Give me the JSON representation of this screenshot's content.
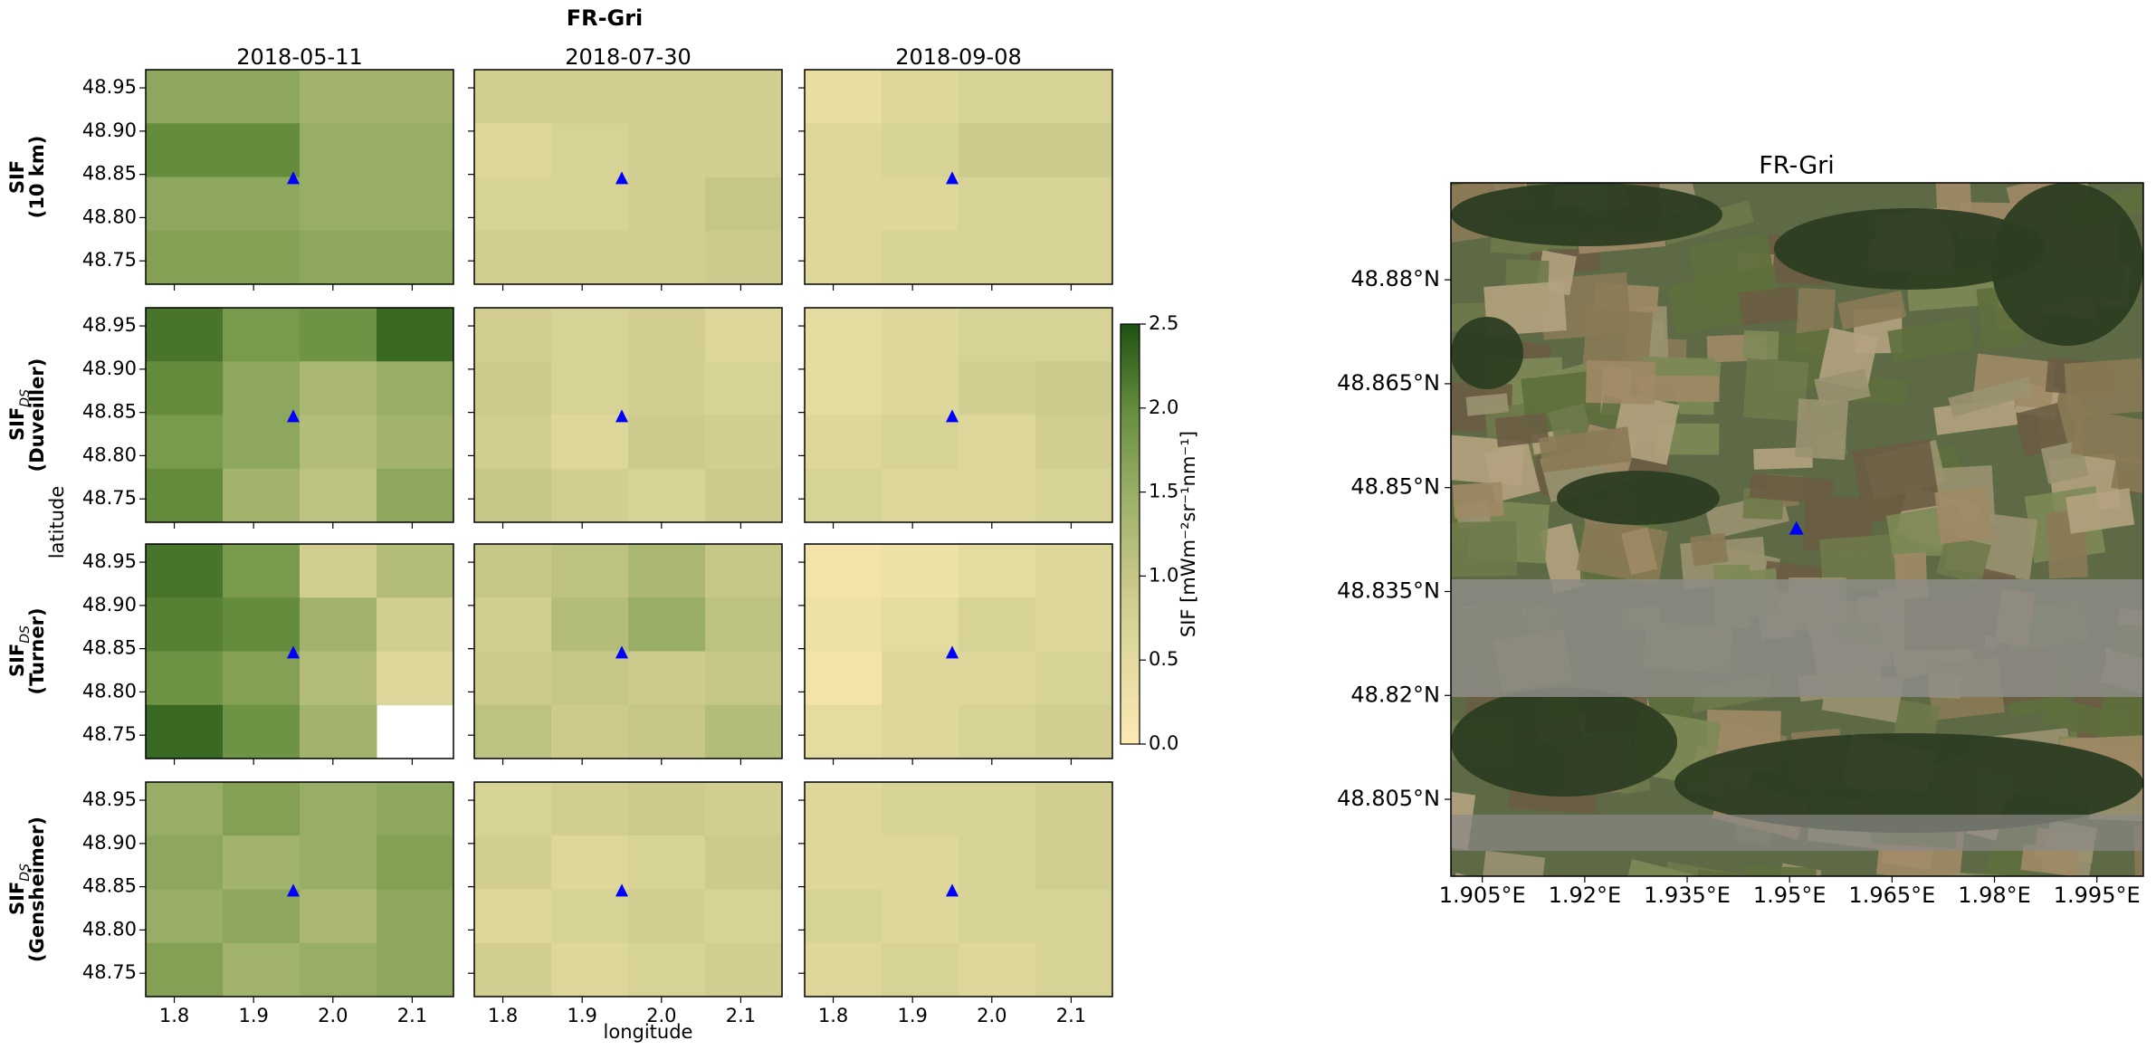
{
  "chart_data": [
    {
      "type": "heatmap_grid",
      "title": "FR-Gri",
      "columns": [
        "2018-05-11",
        "2018-07-30",
        "2018-09-08"
      ],
      "rows": [
        {
          "name": "SIF",
          "detail": "(10 km)"
        },
        {
          "name": "SIF",
          "subscript": "DS",
          "detail": "(Duveiller)"
        },
        {
          "name": "SIF",
          "subscript": "DS",
          "detail": "(Turner)"
        },
        {
          "name": "SIF",
          "subscript": "DS",
          "detail": "(Gensheimer)"
        }
      ],
      "xlabel": "longitude",
      "ylabel": "latitude",
      "xlim": [
        1.764,
        2.152
      ],
      "ylim": [
        48.723,
        48.971
      ],
      "xticks": [
        1.8,
        1.9,
        {
          "value": 2,
          "label": "2.0"
        },
        2.1
      ],
      "yticks": [
        48.75,
        {
          "value": 48.8,
          "label": "48.80"
        },
        48.85,
        {
          "value": 48.9,
          "label": "48.90"
        },
        48.95
      ],
      "marker": {
        "x": 1.95,
        "y": 48.845,
        "color": "#0000ff"
      },
      "colorbar_label": "SIF [mWm⁻²sr⁻¹nm⁻¹]",
      "clim": [
        0,
        2.5
      ],
      "cticks": [
        {
          "value": 0,
          "label": "0.0"
        },
        0.5,
        {
          "value": 1,
          "label": "1.0"
        },
        1.5,
        {
          "value": 2,
          "label": "2.0"
        },
        2.5
      ],
      "colormap": [
        "#fde9b3",
        "#e3dba0",
        "#c6c688",
        "#98ae66",
        "#648c3c",
        "#1e5112"
      ],
      "panels": [
        [
          [
            [
              1.6,
              1.6,
              1.4,
              1.4
            ],
            [
              2.0,
              2.0,
              1.5,
              1.5
            ],
            [
              1.6,
              1.6,
              1.5,
              1.5
            ],
            [
              1.7,
              1.7,
              1.6,
              1.6
            ]
          ],
          [
            [
              0.8,
              0.8,
              0.8,
              0.8
            ],
            [
              0.6,
              0.7,
              0.8,
              0.8
            ],
            [
              0.7,
              0.7,
              0.8,
              1.0
            ],
            [
              0.8,
              0.8,
              0.8,
              0.9
            ]
          ],
          [
            [
              0.4,
              0.6,
              0.7,
              0.7
            ],
            [
              0.6,
              0.7,
              0.9,
              0.9
            ],
            [
              0.6,
              0.6,
              0.7,
              0.7
            ],
            [
              0.6,
              0.7,
              0.7,
              0.7
            ]
          ]
        ],
        [
          [
            [
              2.2,
              1.8,
              1.9,
              2.3
            ],
            [
              2.0,
              1.6,
              1.3,
              1.5
            ],
            [
              1.8,
              1.6,
              1.2,
              1.4
            ],
            [
              2.0,
              1.4,
              1.1,
              1.6
            ]
          ],
          [
            [
              0.8,
              0.7,
              0.8,
              0.6
            ],
            [
              0.9,
              0.7,
              0.8,
              0.7
            ],
            [
              0.8,
              0.6,
              0.9,
              0.8
            ],
            [
              1.0,
              0.8,
              0.7,
              0.9
            ]
          ],
          [
            [
              0.5,
              0.6,
              0.7,
              0.7
            ],
            [
              0.5,
              0.6,
              0.8,
              0.9
            ],
            [
              0.6,
              0.7,
              0.6,
              0.8
            ],
            [
              0.7,
              0.6,
              0.6,
              0.7
            ]
          ]
        ],
        [
          [
            [
              2.2,
              1.8,
              0.8,
              1.2
            ],
            [
              2.1,
              2.0,
              1.4,
              0.8
            ],
            [
              1.9,
              1.7,
              1.2,
              0.6
            ],
            [
              2.3,
              1.9,
              1.4,
              null
            ]
          ],
          [
            [
              1.0,
              1.1,
              1.3,
              1.0
            ],
            [
              0.8,
              1.2,
              1.5,
              1.1
            ],
            [
              0.9,
              1.0,
              0.9,
              1.0
            ],
            [
              1.1,
              0.9,
              1.0,
              1.2
            ]
          ],
          [
            [
              0.2,
              0.3,
              0.5,
              0.6
            ],
            [
              0.3,
              0.5,
              0.7,
              0.6
            ],
            [
              0.2,
              0.6,
              0.6,
              0.7
            ],
            [
              0.5,
              0.6,
              0.7,
              0.8
            ]
          ]
        ],
        [
          [
            [
              1.5,
              1.7,
              1.5,
              1.6
            ],
            [
              1.6,
              1.4,
              1.5,
              1.7
            ],
            [
              1.5,
              1.6,
              1.3,
              1.6
            ],
            [
              1.7,
              1.4,
              1.5,
              1.6
            ]
          ],
          [
            [
              0.7,
              0.8,
              0.9,
              0.8
            ],
            [
              0.8,
              0.6,
              0.7,
              0.9
            ],
            [
              0.6,
              0.7,
              0.8,
              0.7
            ],
            [
              0.8,
              0.6,
              0.7,
              0.8
            ]
          ],
          [
            [
              0.6,
              0.7,
              0.7,
              0.8
            ],
            [
              0.6,
              0.6,
              0.7,
              0.8
            ],
            [
              0.7,
              0.6,
              0.7,
              0.7
            ],
            [
              0.6,
              0.7,
              0.6,
              0.7
            ]
          ]
        ]
      ]
    },
    {
      "type": "image_map",
      "title": "FR-Gri",
      "xlim": [
        1.9004,
        2.0018
      ],
      "ylim": [
        48.7939,
        48.894
      ],
      "xticks": [
        {
          "value": 1.905,
          "label": "1.905°E"
        },
        {
          "value": 1.92,
          "label": "1.92°E"
        },
        {
          "value": 1.935,
          "label": "1.935°E"
        },
        {
          "value": 1.95,
          "label": "1.95°E"
        },
        {
          "value": 1.965,
          "label": "1.965°E"
        },
        {
          "value": 1.98,
          "label": "1.98°E"
        },
        {
          "value": 1.995,
          "label": "1.995°E"
        }
      ],
      "yticks": [
        {
          "value": 48.805,
          "label": "48.805°N"
        },
        {
          "value": 48.82,
          "label": "48.82°N"
        },
        {
          "value": 48.835,
          "label": "48.835°N"
        },
        {
          "value": 48.85,
          "label": "48.85°N"
        },
        {
          "value": 48.865,
          "label": "48.865°N"
        },
        {
          "value": 48.88,
          "label": "48.88°N"
        }
      ],
      "marker": {
        "x": 1.951,
        "y": 48.844,
        "color": "#0000ff"
      }
    }
  ]
}
